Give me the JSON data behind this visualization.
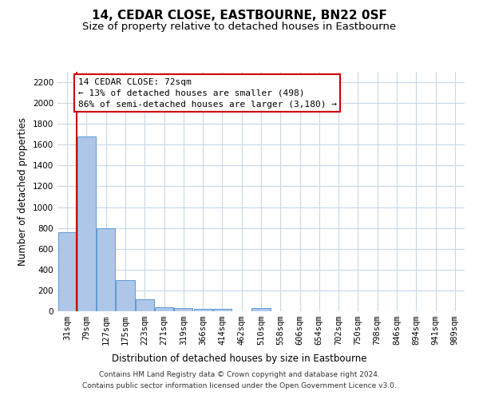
{
  "title": "14, CEDAR CLOSE, EASTBOURNE, BN22 0SF",
  "subtitle": "Size of property relative to detached houses in Eastbourne",
  "xlabel": "Distribution of detached houses by size in Eastbourne",
  "ylabel": "Number of detached properties",
  "categories": [
    "31sqm",
    "79sqm",
    "127sqm",
    "175sqm",
    "223sqm",
    "271sqm",
    "319sqm",
    "366sqm",
    "414sqm",
    "462sqm",
    "510sqm",
    "558sqm",
    "606sqm",
    "654sqm",
    "702sqm",
    "750sqm",
    "798sqm",
    "846sqm",
    "894sqm",
    "941sqm",
    "989sqm"
  ],
  "values": [
    760,
    1680,
    800,
    300,
    115,
    40,
    30,
    25,
    20,
    0,
    30,
    0,
    0,
    0,
    0,
    0,
    0,
    0,
    0,
    0,
    0
  ],
  "bar_color": "#aec6e8",
  "bar_edge_color": "#5b9bd5",
  "vline_color": "#cc0000",
  "annotation_text": "14 CEDAR CLOSE: 72sqm\n← 13% of detached houses are smaller (498)\n86% of semi-detached houses are larger (3,180) →",
  "annotation_box_color": "#ffffff",
  "annotation_box_edge": "#cc0000",
  "ylim": [
    0,
    2300
  ],
  "yticks": [
    0,
    200,
    400,
    600,
    800,
    1000,
    1200,
    1400,
    1600,
    1800,
    2000,
    2200
  ],
  "footer": "Contains HM Land Registry data © Crown copyright and database right 2024.\nContains public sector information licensed under the Open Government Licence v3.0.",
  "bg_color": "#ffffff",
  "grid_color": "#c8d8e8",
  "title_fontsize": 11,
  "subtitle_fontsize": 9.5,
  "axis_label_fontsize": 8.5,
  "tick_fontsize": 7.5,
  "annotation_fontsize": 8,
  "footer_fontsize": 6.5
}
